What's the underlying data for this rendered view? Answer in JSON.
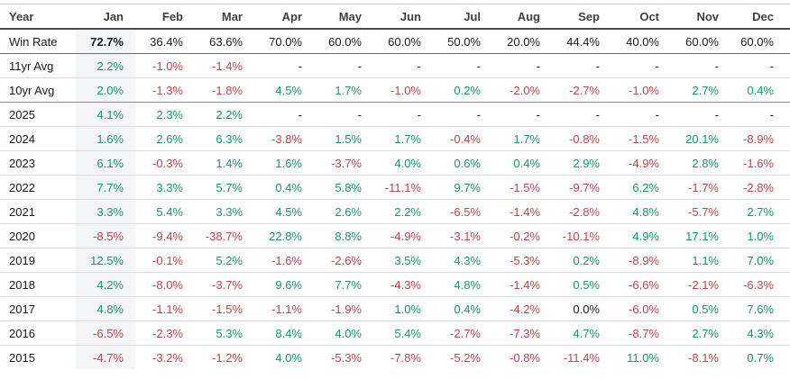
{
  "colors": {
    "positive": "#14966e",
    "negative": "#c0424f",
    "neutral": "#1a1a1a",
    "jan_column_highlight": "#f4f5f6"
  },
  "table": {
    "columns": [
      "Year",
      "Jan",
      "Feb",
      "Mar",
      "Apr",
      "May",
      "Jun",
      "Jul",
      "Aug",
      "Sep",
      "Oct",
      "Nov",
      "Dec"
    ],
    "empty_value": "-",
    "rows": [
      {
        "label": "Win Rate",
        "kind": "winrate",
        "values": [
          "72.7%",
          "36.4%",
          "63.6%",
          "70.0%",
          "60.0%",
          "60.0%",
          "50.0%",
          "20.0%",
          "44.4%",
          "40.0%",
          "60.0%",
          "60.0%"
        ]
      },
      {
        "label": "11yr Avg",
        "kind": "avg11",
        "values": [
          "2.2%",
          "-1.0%",
          "-1.4%",
          "-",
          "-",
          "-",
          "-",
          "-",
          "-",
          "-",
          "-",
          "-"
        ]
      },
      {
        "label": "10yr Avg",
        "kind": "avg10",
        "values": [
          "2.0%",
          "-1.3%",
          "-1.8%",
          "4.5%",
          "1.7%",
          "-1.0%",
          "0.2%",
          "-2.0%",
          "-2.7%",
          "-1.0%",
          "2.7%",
          "0.4%"
        ]
      },
      {
        "label": "2025",
        "kind": "year",
        "values": [
          "4.1%",
          "2.3%",
          "2.2%",
          "-",
          "-",
          "-",
          "-",
          "-",
          "-",
          "-",
          "-",
          "-"
        ]
      },
      {
        "label": "2024",
        "kind": "year",
        "values": [
          "1.6%",
          "2.6%",
          "6.3%",
          "-3.8%",
          "1.5%",
          "1.7%",
          "-0.4%",
          "1.7%",
          "-0.8%",
          "-1.5%",
          "20.1%",
          "-8.9%"
        ]
      },
      {
        "label": "2023",
        "kind": "year",
        "values": [
          "6.1%",
          "-0.3%",
          "1.4%",
          "1.6%",
          "-3.7%",
          "4.0%",
          "0.6%",
          "0.4%",
          "2.9%",
          "-4.9%",
          "2.8%",
          "-1.6%"
        ]
      },
      {
        "label": "2022",
        "kind": "year",
        "values": [
          "7.7%",
          "3.3%",
          "5.7%",
          "0.4%",
          "5.8%",
          "-11.1%",
          "9.7%",
          "-1.5%",
          "-9.7%",
          "6.2%",
          "-1.7%",
          "-2.8%"
        ]
      },
      {
        "label": "2021",
        "kind": "year",
        "values": [
          "3.3%",
          "5.4%",
          "3.3%",
          "4.5%",
          "2.6%",
          "2.2%",
          "-6.5%",
          "-1.4%",
          "-2.8%",
          "4.8%",
          "-5.7%",
          "2.7%"
        ]
      },
      {
        "label": "2020",
        "kind": "year",
        "values": [
          "-8.5%",
          "-9.4%",
          "-38.7%",
          "22.8%",
          "8.8%",
          "-4.9%",
          "-3.1%",
          "-0.2%",
          "-10.1%",
          "4.9%",
          "17.1%",
          "1.0%"
        ]
      },
      {
        "label": "2019",
        "kind": "year",
        "values": [
          "12.5%",
          "-0.1%",
          "5.2%",
          "-1.6%",
          "-2.6%",
          "3.5%",
          "4.3%",
          "-5.3%",
          "0.2%",
          "-8.9%",
          "1.1%",
          "7.0%"
        ]
      },
      {
        "label": "2018",
        "kind": "year",
        "values": [
          "4.2%",
          "-8.0%",
          "-3.7%",
          "9.6%",
          "7.7%",
          "-4.3%",
          "4.8%",
          "-1.4%",
          "0.5%",
          "-6.6%",
          "-2.1%",
          "-6.3%"
        ]
      },
      {
        "label": "2017",
        "kind": "year",
        "values": [
          "4.8%",
          "-1.1%",
          "-1.5%",
          "-1.1%",
          "-1.9%",
          "1.0%",
          "0.4%",
          "-4.2%",
          "0.0%",
          "-6.0%",
          "0.5%",
          "7.6%"
        ]
      },
      {
        "label": "2016",
        "kind": "year",
        "values": [
          "-6.5%",
          "-2.3%",
          "5.3%",
          "8.4%",
          "4.0%",
          "5.4%",
          "-2.7%",
          "-7.3%",
          "4.7%",
          "-8.7%",
          "2.7%",
          "4.3%"
        ]
      },
      {
        "label": "2015",
        "kind": "year",
        "values": [
          "-4.7%",
          "-3.2%",
          "-1.2%",
          "4.0%",
          "-5.3%",
          "-7.8%",
          "-5.2%",
          "-0.8%",
          "-11.4%",
          "11.0%",
          "-8.1%",
          "0.7%"
        ]
      }
    ]
  }
}
